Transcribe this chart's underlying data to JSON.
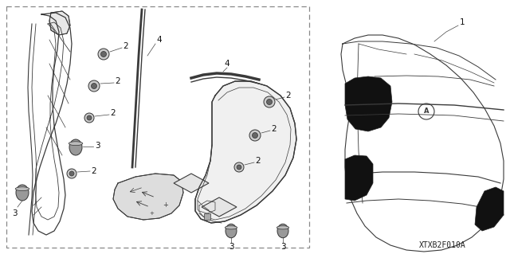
{
  "bg_color": "#ffffff",
  "fig_width": 6.4,
  "fig_height": 3.19,
  "dpi": 100,
  "diagram_code": "XTXB2F010A",
  "line_color": "#3a3a3a",
  "dark_fill": "#1a1a1a",
  "mid_fill": "#555555",
  "light_fill": "#aaaaaa"
}
